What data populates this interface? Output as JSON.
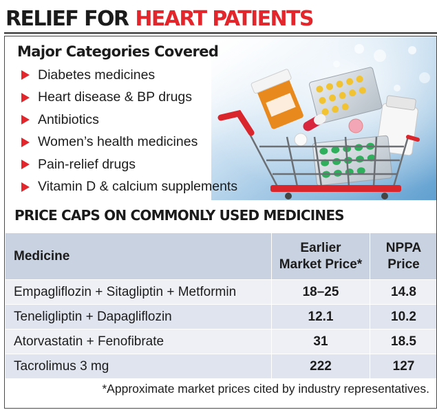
{
  "headline": {
    "part1": "RELIEF FOR",
    "part2": "HEART PATIENTS"
  },
  "categories": {
    "title": "Major Categories Covered",
    "items": [
      "Diabetes medicines",
      "Heart disease & BP drugs",
      "Antibiotics",
      "Women’s health medicines",
      "Pain-relief drugs",
      "Vitamin D & calcium supplements"
    ]
  },
  "illustration": {
    "icon": "shopping-cart-with-medicines"
  },
  "price_caps": {
    "title": "PRICE CAPS ON COMMONLY USED MEDICINES",
    "columns": {
      "medicine": "Medicine",
      "earlier_line1": "Earlier",
      "earlier_line2": "Market Price*",
      "nppa_line1": "NPPA",
      "nppa_line2": "Price"
    },
    "rows": [
      {
        "medicine": "Empagliflozin + Sitagliptin + Metformin",
        "earlier": "18–25",
        "nppa": "14.8"
      },
      {
        "medicine": "Teneligliptin + Dapagliflozin",
        "earlier": "12.1",
        "nppa": "10.2"
      },
      {
        "medicine": "Atorvastatin + Fenofibrate",
        "earlier": "31",
        "nppa": "18.5"
      },
      {
        "medicine": "Tacrolimus 3 mg",
        "earlier": "222",
        "nppa": "127"
      }
    ]
  },
  "footnote": "*Approximate market prices cited by industry representatives.",
  "colors": {
    "accent": "#e3262c",
    "header_row": "#c9d2e1",
    "row_light": "#eef0f5",
    "row_dark": "#dfe4ee"
  }
}
